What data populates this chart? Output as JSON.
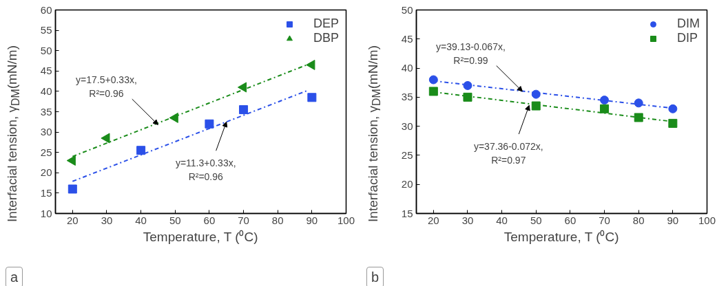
{
  "chart_data": [
    {
      "type": "scatter",
      "xlabel": "Temperature, T (⁰C)",
      "ylabel": "Interfacial tension, γ$_{DM}$(mN/m)",
      "xlim": [
        15,
        100
      ],
      "ylim": [
        10,
        60
      ],
      "xticks": [
        20,
        30,
        40,
        50,
        60,
        70,
        80,
        90,
        100
      ],
      "yticks": [
        10,
        15,
        20,
        25,
        30,
        35,
        40,
        45,
        50,
        55,
        60
      ],
      "grid": false,
      "legend": "top right",
      "series": [
        {
          "name": "DEP",
          "color": "#2b50e8",
          "marker": "square",
          "x": [
            20,
            40,
            60,
            70,
            90
          ],
          "values": [
            16,
            25.5,
            32,
            35.5,
            38.5
          ]
        },
        {
          "name": "DBP",
          "color": "#1a8c1a",
          "marker": "triangle",
          "x": [
            20,
            30,
            50,
            70,
            90
          ],
          "values": [
            23,
            28.5,
            33.5,
            41,
            46.5
          ]
        },
        {
          "type": "line",
          "color": "#2b50e8",
          "line_style": "dashdot",
          "x": [
            20,
            89
          ],
          "values": [
            17.9,
            40.3
          ]
        },
        {
          "type": "line",
          "color": "#1a8c1a",
          "line_style": "dashdot",
          "x": [
            20,
            90
          ],
          "values": [
            24.0,
            47.0
          ]
        }
      ],
      "annotations": [
        {
          "text": "y=17.5+0.33x,\nR²=0.96",
          "x": 45,
          "y": 31.8
        },
        {
          "text": "y=11.3+0.33x,\nR²=0.96",
          "x": 65,
          "y": 32.5
        },
        "a"
      ]
    },
    {
      "type": "scatter",
      "xlabel": "Temperature, T (⁰C)",
      "ylabel": "Interfacial tension, γ$_{DM}$(mN/m)",
      "xlim": [
        15,
        100
      ],
      "ylim": [
        15,
        50
      ],
      "xticks": [
        20,
        30,
        40,
        50,
        60,
        70,
        80,
        90,
        100
      ],
      "yticks": [
        15,
        20,
        25,
        30,
        35,
        40,
        45,
        50
      ],
      "grid": false,
      "legend": "top right",
      "series": [
        {
          "name": "DIM",
          "color": "#2b50e8",
          "marker": "circle",
          "x": [
            20,
            30,
            50,
            70,
            80,
            90
          ],
          "values": [
            38,
            37,
            35.5,
            34.5,
            34,
            33
          ]
        },
        {
          "name": "DIP",
          "color": "#1a8c1a",
          "marker": "square",
          "x": [
            20,
            30,
            50,
            70,
            80,
            90
          ],
          "values": [
            36,
            35,
            33.5,
            33,
            31.5,
            30.5
          ]
        },
        {
          "type": "line",
          "color": "#2b50e8",
          "line_style": "dashdot",
          "x": [
            20,
            90
          ],
          "values": [
            37.8,
            33.1
          ]
        },
        {
          "type": "line",
          "color": "#1a8c1a",
          "line_style": "dashdot",
          "x": [
            20,
            90
          ],
          "values": [
            35.9,
            30.8
          ]
        }
      ],
      "annotations": [
        {
          "text": "y=39.13-0.067x,\nR²=0.99",
          "x": 46,
          "y": 36
        },
        {
          "text": "y=37.36-0.072x,\nR²=0.97",
          "x": 48,
          "y": 33.6
        },
        "b"
      ]
    }
  ]
}
